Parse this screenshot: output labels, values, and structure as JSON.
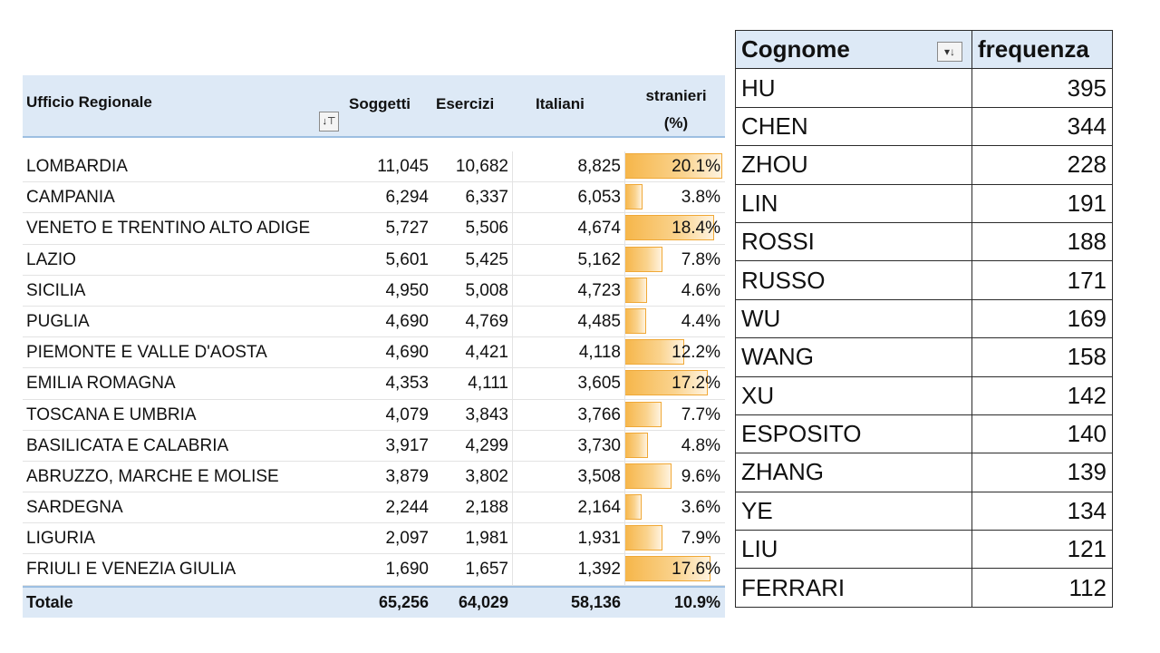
{
  "pivot": {
    "headers": {
      "ufficio": "Ufficio Regionale",
      "soggetti": "Soggetti",
      "esercizi": "Esercizi",
      "italiani": "Italiani",
      "stranieri_line1": "stranieri",
      "stranieri_line2": "(%)"
    },
    "filter_icon": "filter-sort-icon",
    "bar_color": "#f6b64a",
    "rows": [
      {
        "ufficio": "LOMBARDIA",
        "soggetti": "11,045",
        "esercizi": "10,682",
        "italiani": "8,825",
        "stranieri": "20.1%",
        "stranieri_value": 20.1
      },
      {
        "ufficio": "CAMPANIA",
        "soggetti": "6,294",
        "esercizi": "6,337",
        "italiani": "6,053",
        "stranieri": "3.8%",
        "stranieri_value": 3.8
      },
      {
        "ufficio": "VENETO E TRENTINO ALTO ADIGE",
        "soggetti": "5,727",
        "esercizi": "5,506",
        "italiani": "4,674",
        "stranieri": "18.4%",
        "stranieri_value": 18.4
      },
      {
        "ufficio": "LAZIO",
        "soggetti": "5,601",
        "esercizi": "5,425",
        "italiani": "5,162",
        "stranieri": "7.8%",
        "stranieri_value": 7.8
      },
      {
        "ufficio": "SICILIA",
        "soggetti": "4,950",
        "esercizi": "5,008",
        "italiani": "4,723",
        "stranieri": "4.6%",
        "stranieri_value": 4.6
      },
      {
        "ufficio": "PUGLIA",
        "soggetti": "4,690",
        "esercizi": "4,769",
        "italiani": "4,485",
        "stranieri": "4.4%",
        "stranieri_value": 4.4
      },
      {
        "ufficio": "PIEMONTE E VALLE D'AOSTA",
        "soggetti": "4,690",
        "esercizi": "4,421",
        "italiani": "4,118",
        "stranieri": "12.2%",
        "stranieri_value": 12.2
      },
      {
        "ufficio": "EMILIA ROMAGNA",
        "soggetti": "4,353",
        "esercizi": "4,111",
        "italiani": "3,605",
        "stranieri": "17.2%",
        "stranieri_value": 17.2
      },
      {
        "ufficio": "TOSCANA E UMBRIA",
        "soggetti": "4,079",
        "esercizi": "3,843",
        "italiani": "3,766",
        "stranieri": "7.7%",
        "stranieri_value": 7.7
      },
      {
        "ufficio": "BASILICATA E CALABRIA",
        "soggetti": "3,917",
        "esercizi": "4,299",
        "italiani": "3,730",
        "stranieri": "4.8%",
        "stranieri_value": 4.8
      },
      {
        "ufficio": "ABRUZZO, MARCHE E MOLISE",
        "soggetti": "3,879",
        "esercizi": "3,802",
        "italiani": "3,508",
        "stranieri": "9.6%",
        "stranieri_value": 9.6
      },
      {
        "ufficio": "SARDEGNA",
        "soggetti": "2,244",
        "esercizi": "2,188",
        "italiani": "2,164",
        "stranieri": "3.6%",
        "stranieri_value": 3.6
      },
      {
        "ufficio": "LIGURIA",
        "soggetti": "2,097",
        "esercizi": "1,981",
        "italiani": "1,931",
        "stranieri": "7.9%",
        "stranieri_value": 7.9
      },
      {
        "ufficio": "FRIULI E VENEZIA GIULIA",
        "soggetti": "1,690",
        "esercizi": "1,657",
        "italiani": "1,392",
        "stranieri": "17.6%",
        "stranieri_value": 17.6
      }
    ],
    "total": {
      "ufficio": "Totale",
      "soggetti": "65,256",
      "esercizi": "64,029",
      "italiani": "58,136",
      "stranieri": "10.9%"
    }
  },
  "surnames": {
    "headers": {
      "cognome": "Cognome",
      "frequenza": "frequenza"
    },
    "sort_icon": "sort-descending-icon",
    "rows": [
      {
        "cognome": "HU",
        "frequenza": "395"
      },
      {
        "cognome": "CHEN",
        "frequenza": "344"
      },
      {
        "cognome": "ZHOU",
        "frequenza": "228"
      },
      {
        "cognome": "LIN",
        "frequenza": "191"
      },
      {
        "cognome": "ROSSI",
        "frequenza": "188"
      },
      {
        "cognome": "RUSSO",
        "frequenza": "171"
      },
      {
        "cognome": "WU",
        "frequenza": "169"
      },
      {
        "cognome": "WANG",
        "frequenza": "158"
      },
      {
        "cognome": "XU",
        "frequenza": "142"
      },
      {
        "cognome": "ESPOSITO",
        "frequenza": "140"
      },
      {
        "cognome": "ZHANG",
        "frequenza": "139"
      },
      {
        "cognome": "YE",
        "frequenza": "134"
      },
      {
        "cognome": "LIU",
        "frequenza": "121"
      },
      {
        "cognome": "FERRARI",
        "frequenza": "112"
      }
    ]
  }
}
